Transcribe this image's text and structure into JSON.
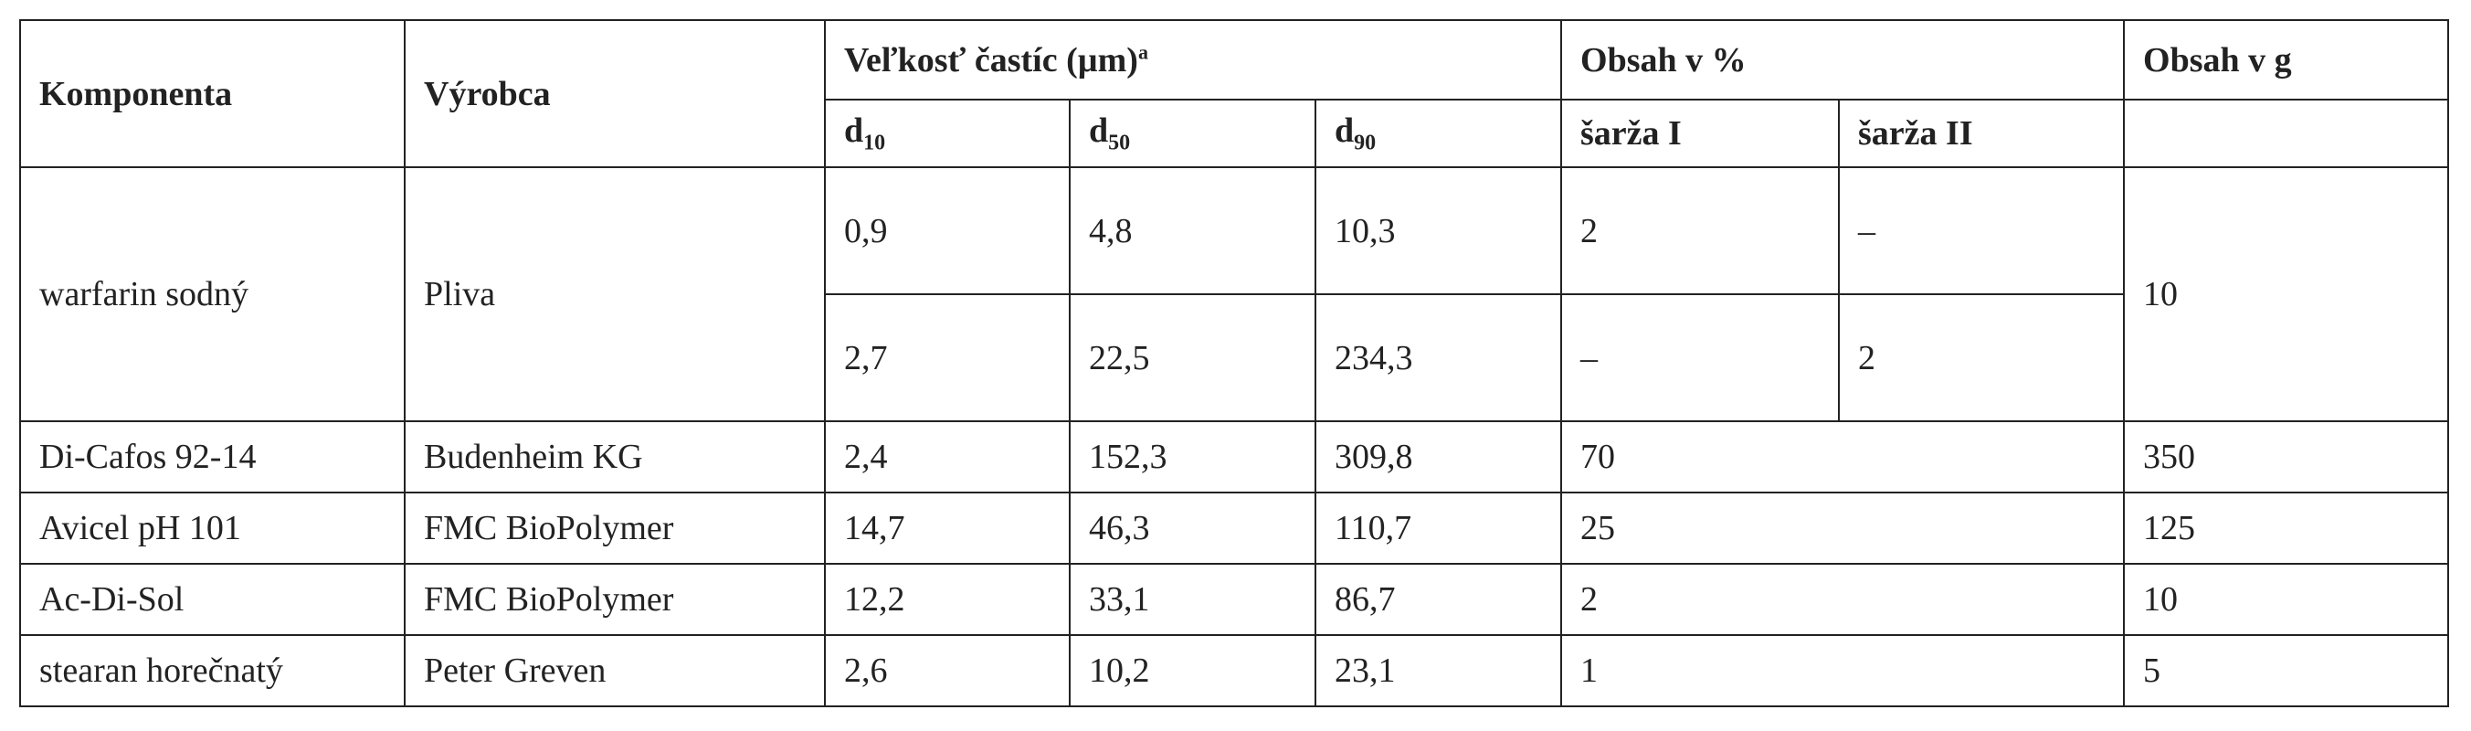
{
  "table": {
    "header": {
      "komponenta": "Komponenta",
      "vyrobca": "Výrobca",
      "velkost": {
        "text": "Veľkosť častíc (µm)",
        "sup": "a"
      },
      "obsah_percent": "Obsah v %",
      "obsah_g": "Obsah v g",
      "d10": {
        "base": "d",
        "sub": "10"
      },
      "d50": {
        "base": "d",
        "sub": "50"
      },
      "d90": {
        "base": "d",
        "sub": "90"
      },
      "sarza_1": "šarža I",
      "sarza_2": "šarža II"
    },
    "rows": [
      {
        "komponenta": "warfarin sodný",
        "vyrobca": "Pliva",
        "obsah_g": "10",
        "lots": [
          {
            "d10": "0,9",
            "d50": "4,8",
            "d90": "10,3",
            "sarza_1": "2",
            "sarza_2": "–"
          },
          {
            "d10": "2,7",
            "d50": "22,5",
            "d90": "234,3",
            "sarza_1": "–",
            "sarza_2": "2"
          }
        ]
      },
      {
        "komponenta": "Di-Cafos 92-14",
        "vyrobca": "Budenheim KG",
        "d10": "2,4",
        "d50": "152,3",
        "d90": "309,8",
        "obsah_percent": "70",
        "obsah_g": "350"
      },
      {
        "komponenta": "Avicel pH 101",
        "vyrobca": "FMC BioPolymer",
        "d10": "14,7",
        "d50": "46,3",
        "d90": "110,7",
        "obsah_percent": "25",
        "obsah_g": "125"
      },
      {
        "komponenta": "Ac-Di-Sol",
        "vyrobca": "FMC BioPolymer",
        "d10": "12,2",
        "d50": "33,1",
        "d90": "86,7",
        "obsah_percent": "2",
        "obsah_g": "10"
      },
      {
        "komponenta": "stearan horečnatý",
        "vyrobca": "Peter Greven",
        "d10": "2,6",
        "d50": "10,2",
        "d90": "23,1",
        "obsah_percent": "1",
        "obsah_g": "5"
      }
    ]
  }
}
